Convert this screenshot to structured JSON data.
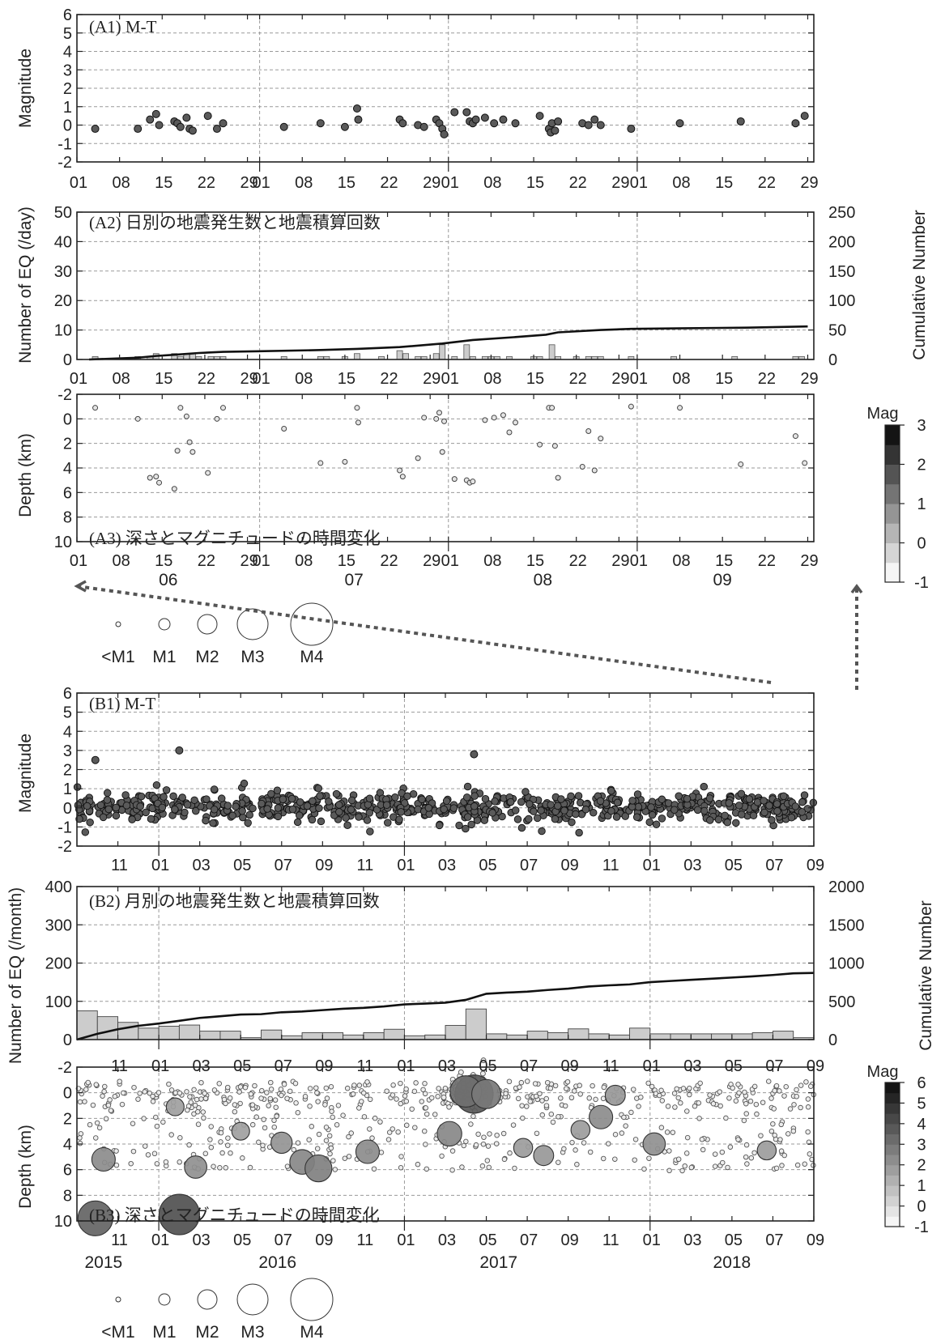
{
  "chart_data": [
    {
      "panel": "A1",
      "type": "scatter",
      "title": "(A1) M-T",
      "ylabel": "Magnitude",
      "xlim": [
        0,
        121
      ],
      "ylim": [
        -2,
        6
      ],
      "yticks": [
        "-2",
        "-1",
        "0",
        "1",
        "2",
        "3",
        "4",
        "5",
        "6"
      ],
      "x_tick_labels": [
        "01",
        "08",
        "15",
        "22",
        "29",
        "01",
        "08",
        "15",
        "22",
        "29",
        "01",
        "08",
        "15",
        "22",
        "29",
        "01",
        "08",
        "15",
        "22",
        "29"
      ],
      "grid": true,
      "points": [
        {
          "x": 3,
          "y": -0.2
        },
        {
          "x": 10,
          "y": -0.2
        },
        {
          "x": 12,
          "y": 0.3
        },
        {
          "x": 13,
          "y": 0.6
        },
        {
          "x": 13.5,
          "y": 0.0
        },
        {
          "x": 16,
          "y": 0.2
        },
        {
          "x": 16.5,
          "y": 0.1
        },
        {
          "x": 17,
          "y": -0.1
        },
        {
          "x": 18,
          "y": 0.4
        },
        {
          "x": 18.5,
          "y": -0.2
        },
        {
          "x": 19,
          "y": -0.3
        },
        {
          "x": 21.5,
          "y": 0.5
        },
        {
          "x": 23,
          "y": -0.2
        },
        {
          "x": 24,
          "y": 0.1
        },
        {
          "x": 34,
          "y": -0.1
        },
        {
          "x": 40,
          "y": 0.1
        },
        {
          "x": 44,
          "y": -0.1
        },
        {
          "x": 46,
          "y": 0.9
        },
        {
          "x": 46.2,
          "y": 0.3
        },
        {
          "x": 53,
          "y": 0.3
        },
        {
          "x": 53.5,
          "y": 0.1
        },
        {
          "x": 56,
          "y": 0.0
        },
        {
          "x": 57,
          "y": -0.1
        },
        {
          "x": 59,
          "y": 0.3
        },
        {
          "x": 59.5,
          "y": 0.1
        },
        {
          "x": 60,
          "y": -0.2
        },
        {
          "x": 60.3,
          "y": -0.5
        },
        {
          "x": 62,
          "y": 0.7
        },
        {
          "x": 64,
          "y": 0.7
        },
        {
          "x": 64.5,
          "y": 0.2
        },
        {
          "x": 65,
          "y": 0.1
        },
        {
          "x": 65.5,
          "y": 0.3
        },
        {
          "x": 67,
          "y": 0.4
        },
        {
          "x": 68.5,
          "y": 0.1
        },
        {
          "x": 70,
          "y": 0.3
        },
        {
          "x": 72,
          "y": 0.1
        },
        {
          "x": 76,
          "y": 0.5
        },
        {
          "x": 77.5,
          "y": -0.2
        },
        {
          "x": 77.8,
          "y": -0.4
        },
        {
          "x": 78,
          "y": 0.1
        },
        {
          "x": 78.5,
          "y": -0.3
        },
        {
          "x": 79,
          "y": 0.2
        },
        {
          "x": 83,
          "y": 0.1
        },
        {
          "x": 84,
          "y": 0.0
        },
        {
          "x": 85,
          "y": 0.3
        },
        {
          "x": 86,
          "y": 0.0
        },
        {
          "x": 91,
          "y": -0.2
        },
        {
          "x": 99,
          "y": 0.1
        },
        {
          "x": 109,
          "y": 0.2
        },
        {
          "x": 118,
          "y": 0.1
        },
        {
          "x": 119.5,
          "y": 0.5
        }
      ]
    },
    {
      "panel": "A2",
      "type": "bar",
      "title": "(A2) 日別の地震発生数と地震積算回数",
      "ylabel": "Number of EQ (/day)",
      "ylabel_right": "Cumulative Number",
      "ylim": [
        0,
        50
      ],
      "ylim_right": [
        0,
        250
      ],
      "yticks": [
        "0",
        "10",
        "20",
        "30",
        "40",
        "50"
      ],
      "yticks_right": [
        "0",
        "50",
        "100",
        "150",
        "200",
        "250"
      ],
      "x_tick_labels": [
        "01",
        "08",
        "15",
        "22",
        "29",
        "01",
        "08",
        "15",
        "22",
        "29",
        "01",
        "08",
        "15",
        "22",
        "29",
        "01",
        "08",
        "15",
        "22",
        "29"
      ],
      "bars": [
        {
          "x": 3,
          "v": 1
        },
        {
          "x": 10,
          "v": 1
        },
        {
          "x": 12,
          "v": 1
        },
        {
          "x": 13,
          "v": 2
        },
        {
          "x": 16,
          "v": 2
        },
        {
          "x": 17,
          "v": 1
        },
        {
          "x": 18,
          "v": 2
        },
        {
          "x": 19,
          "v": 2
        },
        {
          "x": 20,
          "v": 1
        },
        {
          "x": 22,
          "v": 1
        },
        {
          "x": 23,
          "v": 1
        },
        {
          "x": 24,
          "v": 1
        },
        {
          "x": 34,
          "v": 1
        },
        {
          "x": 40,
          "v": 1
        },
        {
          "x": 41,
          "v": 1
        },
        {
          "x": 44,
          "v": 1
        },
        {
          "x": 46,
          "v": 2
        },
        {
          "x": 50,
          "v": 1
        },
        {
          "x": 53,
          "v": 3
        },
        {
          "x": 54,
          "v": 2
        },
        {
          "x": 56,
          "v": 1
        },
        {
          "x": 57,
          "v": 1
        },
        {
          "x": 59,
          "v": 2
        },
        {
          "x": 60,
          "v": 5
        },
        {
          "x": 62,
          "v": 1
        },
        {
          "x": 64,
          "v": 5
        },
        {
          "x": 65,
          "v": 1
        },
        {
          "x": 67,
          "v": 1
        },
        {
          "x": 68,
          "v": 1
        },
        {
          "x": 69,
          "v": 1
        },
        {
          "x": 71,
          "v": 1
        },
        {
          "x": 75,
          "v": 1
        },
        {
          "x": 76,
          "v": 1
        },
        {
          "x": 78,
          "v": 5
        },
        {
          "x": 79,
          "v": 1
        },
        {
          "x": 82,
          "v": 1
        },
        {
          "x": 84,
          "v": 1
        },
        {
          "x": 85,
          "v": 1
        },
        {
          "x": 86,
          "v": 1
        },
        {
          "x": 91,
          "v": 1
        },
        {
          "x": 98,
          "v": 1
        },
        {
          "x": 108,
          "v": 1
        },
        {
          "x": 118,
          "v": 1
        },
        {
          "x": 119,
          "v": 1
        }
      ],
      "cumulative": [
        {
          "x": 2,
          "y": 0
        },
        {
          "x": 10,
          "y": 3
        },
        {
          "x": 13,
          "y": 6
        },
        {
          "x": 16,
          "y": 8
        },
        {
          "x": 20,
          "y": 11
        },
        {
          "x": 24,
          "y": 13
        },
        {
          "x": 30,
          "y": 14
        },
        {
          "x": 40,
          "y": 16
        },
        {
          "x": 46,
          "y": 18
        },
        {
          "x": 53,
          "y": 21
        },
        {
          "x": 60,
          "y": 27
        },
        {
          "x": 65,
          "y": 33
        },
        {
          "x": 72,
          "y": 38
        },
        {
          "x": 77,
          "y": 42
        },
        {
          "x": 79,
          "y": 46
        },
        {
          "x": 86,
          "y": 50
        },
        {
          "x": 91,
          "y": 52
        },
        {
          "x": 100,
          "y": 53
        },
        {
          "x": 110,
          "y": 54
        },
        {
          "x": 120,
          "y": 56
        }
      ]
    },
    {
      "panel": "A3",
      "type": "scatter",
      "title": "(A3) 深さとマグニチュードの時間変化",
      "ylabel": "Depth (km)",
      "ylim": [
        -2,
        10
      ],
      "yticks": [
        "-2",
        "0",
        "2",
        "4",
        "6",
        "8",
        "10"
      ],
      "x_tick_labels": [
        "01",
        "08",
        "15",
        "22",
        "29",
        "01",
        "08",
        "15",
        "22",
        "29",
        "01",
        "08",
        "15",
        "22",
        "29",
        "01",
        "08",
        "15",
        "22",
        "29"
      ],
      "month_labels": [
        "06",
        "07",
        "08",
        "09"
      ],
      "colorbar": {
        "label": "Mag",
        "ticks": [
          "-1",
          "0",
          "1",
          "2",
          "3"
        ]
      },
      "points": [
        {
          "x": 3,
          "d": -0.9
        },
        {
          "x": 10,
          "d": 0.0
        },
        {
          "x": 12,
          "d": 4.8
        },
        {
          "x": 13,
          "d": 4.7
        },
        {
          "x": 13.5,
          "d": 5.2
        },
        {
          "x": 16,
          "d": 5.7
        },
        {
          "x": 16.5,
          "d": 2.6
        },
        {
          "x": 17,
          "d": -0.9
        },
        {
          "x": 18,
          "d": -0.2
        },
        {
          "x": 18.5,
          "d": 1.9
        },
        {
          "x": 19,
          "d": 2.7
        },
        {
          "x": 21.5,
          "d": 4.4
        },
        {
          "x": 23,
          "d": 0.0
        },
        {
          "x": 24,
          "d": -0.9
        },
        {
          "x": 34,
          "d": 0.8
        },
        {
          "x": 40,
          "d": 3.6
        },
        {
          "x": 44,
          "d": 3.5
        },
        {
          "x": 46,
          "d": -0.9
        },
        {
          "x": 46.2,
          "d": 0.3
        },
        {
          "x": 53,
          "d": 4.2
        },
        {
          "x": 53.5,
          "d": 4.7
        },
        {
          "x": 56,
          "d": 3.2
        },
        {
          "x": 57,
          "d": -0.1
        },
        {
          "x": 59,
          "d": 0.0
        },
        {
          "x": 59.5,
          "d": -0.5
        },
        {
          "x": 60,
          "d": 2.7
        },
        {
          "x": 60.3,
          "d": 0.2
        },
        {
          "x": 62,
          "d": 4.9
        },
        {
          "x": 64,
          "d": 5.0
        },
        {
          "x": 64.5,
          "d": 5.2
        },
        {
          "x": 65,
          "d": 5.1
        },
        {
          "x": 67,
          "d": 0.1
        },
        {
          "x": 68.5,
          "d": -0.1
        },
        {
          "x": 70,
          "d": -0.3
        },
        {
          "x": 71,
          "d": 1.1
        },
        {
          "x": 72,
          "d": 0.3
        },
        {
          "x": 76,
          "d": 2.1
        },
        {
          "x": 77.5,
          "d": -0.9
        },
        {
          "x": 78,
          "d": -0.9
        },
        {
          "x": 78.5,
          "d": 2.2
        },
        {
          "x": 79,
          "d": 4.8
        },
        {
          "x": 83,
          "d": 3.9
        },
        {
          "x": 84,
          "d": 1.0
        },
        {
          "x": 85,
          "d": 4.2
        },
        {
          "x": 86,
          "d": 1.6
        },
        {
          "x": 91,
          "d": -1.0
        },
        {
          "x": 99,
          "d": -0.9
        },
        {
          "x": 109,
          "d": 3.7
        },
        {
          "x": 118,
          "d": 1.4
        },
        {
          "x": 119.5,
          "d": 3.6
        }
      ]
    },
    {
      "panel": "B1",
      "type": "scatter",
      "title": "(B1) M-T",
      "ylabel": "Magnitude",
      "ylim": [
        -2,
        6
      ],
      "yticks": [
        "-2",
        "-1",
        "0",
        "1",
        "2",
        "3",
        "4",
        "5",
        "6"
      ],
      "x_tick_labels": [
        "11",
        "01",
        "03",
        "05",
        "07",
        "09",
        "11",
        "01",
        "03",
        "05",
        "07",
        "09",
        "11",
        "01",
        "03",
        "05",
        "07",
        "09"
      ],
      "grid": true,
      "notable_points": [
        {
          "x": 0.9,
          "y": 2.5
        },
        {
          "x": 5.0,
          "y": 3.0
        },
        {
          "x": 19.4,
          "y": 2.8
        }
      ]
    },
    {
      "panel": "B2",
      "type": "bar",
      "title": "(B2) 月別の地震発生数と地震積算回数",
      "ylabel": "Number of EQ (/month)",
      "ylabel_right": "Cumulative Number",
      "ylim": [
        0,
        400
      ],
      "ylim_right": [
        0,
        2000
      ],
      "yticks": [
        "0",
        "100",
        "200",
        "300",
        "400"
      ],
      "yticks_right": [
        "0",
        "500",
        "1000",
        "1500",
        "2000"
      ],
      "x_tick_labels": [
        "11",
        "01",
        "03",
        "05",
        "07",
        "09",
        "11",
        "01",
        "03",
        "05",
        "07",
        "09",
        "11",
        "01",
        "03",
        "05",
        "07",
        "09"
      ],
      "values": [
        75,
        60,
        45,
        30,
        35,
        38,
        22,
        22,
        5,
        25,
        10,
        18,
        18,
        12,
        18,
        27,
        10,
        12,
        37,
        80,
        15,
        12,
        22,
        18,
        28,
        15,
        12,
        30,
        15,
        15,
        15,
        15,
        15,
        18,
        22,
        5
      ],
      "cumulative": [
        0,
        75,
        135,
        180,
        210,
        245,
        283,
        305,
        327,
        332,
        357,
        367,
        385,
        403,
        415,
        433,
        460,
        470,
        482,
        519,
        599,
        614,
        626,
        648,
        666,
        694,
        709,
        721,
        751,
        766,
        781,
        796,
        811,
        826,
        844,
        866,
        871
      ]
    },
    {
      "panel": "B3",
      "type": "scatter",
      "title": "(B3) 深さとマグニチュードの時間変化",
      "ylabel": "Depth (km)",
      "ylim": [
        -2,
        10
      ],
      "yticks": [
        "-2",
        "0",
        "2",
        "4",
        "6",
        "8",
        "10"
      ],
      "x_tick_labels": [
        "11",
        "01",
        "03",
        "05",
        "07",
        "09",
        "11",
        "01",
        "03",
        "05",
        "07",
        "09",
        "11",
        "01",
        "03",
        "05",
        "07",
        "09"
      ],
      "year_labels": [
        "2015",
        "2016",
        "2017",
        "2018"
      ],
      "colorbar": {
        "label": "Mag",
        "ticks": [
          "-1",
          "0",
          "1",
          "2",
          "3",
          "4",
          "5",
          "6"
        ]
      },
      "notable_points": [
        {
          "x": 0.9,
          "d": 9.8,
          "m": 2.5
        },
        {
          "x": 5.0,
          "d": 9.5,
          "m": 3.0
        },
        {
          "x": 1.3,
          "d": 5.2,
          "m": 1.5
        },
        {
          "x": 5.8,
          "d": 5.8,
          "m": 1.4
        },
        {
          "x": 10.0,
          "d": 3.9,
          "m": 1.3
        },
        {
          "x": 11.0,
          "d": 5.4,
          "m": 1.6
        },
        {
          "x": 11.8,
          "d": 5.9,
          "m": 1.8
        },
        {
          "x": 14.2,
          "d": 4.6,
          "m": 1.5
        },
        {
          "x": 18.2,
          "d": 3.2,
          "m": 1.6
        },
        {
          "x": 19.4,
          "d": 0.1,
          "m": 2.8
        },
        {
          "x": 19.0,
          "d": -0.1,
          "m": 2.2
        },
        {
          "x": 20.0,
          "d": 0.1,
          "m": 2.0
        },
        {
          "x": 21.8,
          "d": 4.3,
          "m": 1.1
        },
        {
          "x": 22.8,
          "d": 4.9,
          "m": 1.2
        },
        {
          "x": 24.6,
          "d": 2.9,
          "m": 1.1
        },
        {
          "x": 25.6,
          "d": 1.9,
          "m": 1.5
        },
        {
          "x": 26.3,
          "d": 0.2,
          "m": 1.2
        },
        {
          "x": 28.2,
          "d": 4.0,
          "m": 1.4
        },
        {
          "x": 33.7,
          "d": 4.5,
          "m": 1.1
        },
        {
          "x": 4.8,
          "d": 1.1,
          "m": 1.0
        },
        {
          "x": 8.0,
          "d": 3.0,
          "m": 1.0
        }
      ]
    }
  ],
  "legend_A": {
    "labels": [
      "<M1",
      "M1",
      "M2",
      "M3",
      "M4"
    ]
  },
  "legend_B": {
    "labels": [
      "<M1",
      "M1",
      "M2",
      "M3",
      "M4"
    ]
  }
}
